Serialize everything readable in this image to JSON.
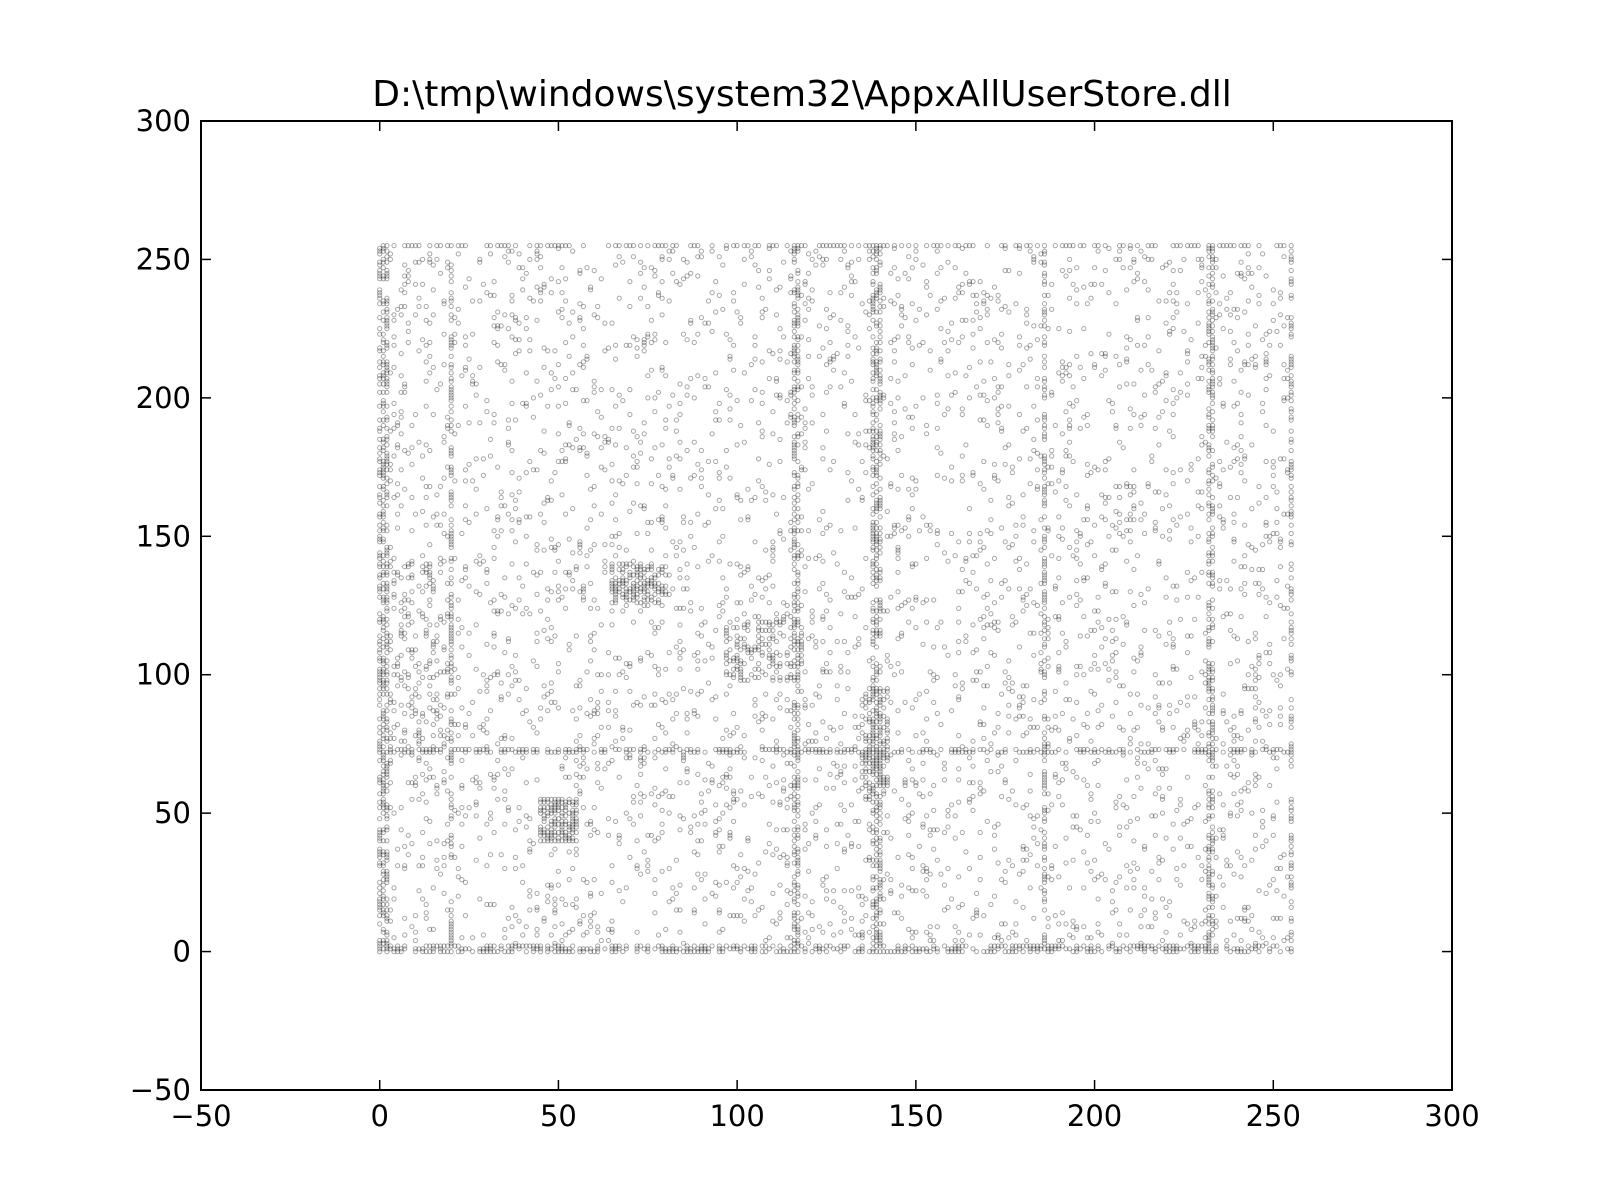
{
  "chart_data": {
    "type": "scatter",
    "title": "D:\\tmp\\windows\\system32\\AppxAllUserStore.dll",
    "xlabel": "",
    "ylabel": "",
    "xlim": [
      -50,
      300
    ],
    "ylim": [
      -50,
      300
    ],
    "xticks": [
      -50,
      0,
      50,
      100,
      150,
      200,
      250,
      300
    ],
    "yticks": [
      -50,
      0,
      50,
      100,
      150,
      200,
      250,
      300
    ],
    "xtick_labels": [
      "−50",
      "0",
      "50",
      "100",
      "150",
      "200",
      "250",
      "300"
    ],
    "ytick_labels": [
      "−50",
      "0",
      "50",
      "100",
      "150",
      "200",
      "250",
      "300"
    ],
    "grid": false,
    "marker_color": "#000000",
    "marker": "small hollow circle",
    "point_alpha": 0.35,
    "data_extent": {
      "x": [
        0,
        255
      ],
      "y": [
        0,
        255
      ]
    },
    "dense_columns_x": [
      0,
      1,
      2,
      20,
      116,
      117,
      138,
      139,
      140,
      186,
      232,
      233,
      255
    ],
    "dense_rows_y": [
      0,
      1,
      2,
      72,
      73,
      255
    ],
    "dense_clusters": [
      {
        "x": [
          97,
          118
        ],
        "y": [
          98,
          122
        ]
      },
      {
        "x": [
          65,
          80
        ],
        "y": [
          125,
          140
        ]
      },
      {
        "x": [
          45,
          55
        ],
        "y": [
          40,
          55
        ]
      },
      {
        "x": [
          135,
          142
        ],
        "y": [
          55,
          95
        ]
      },
      {
        "x": [
          0,
          20
        ],
        "y": [
          60,
          140
        ]
      }
    ]
  }
}
